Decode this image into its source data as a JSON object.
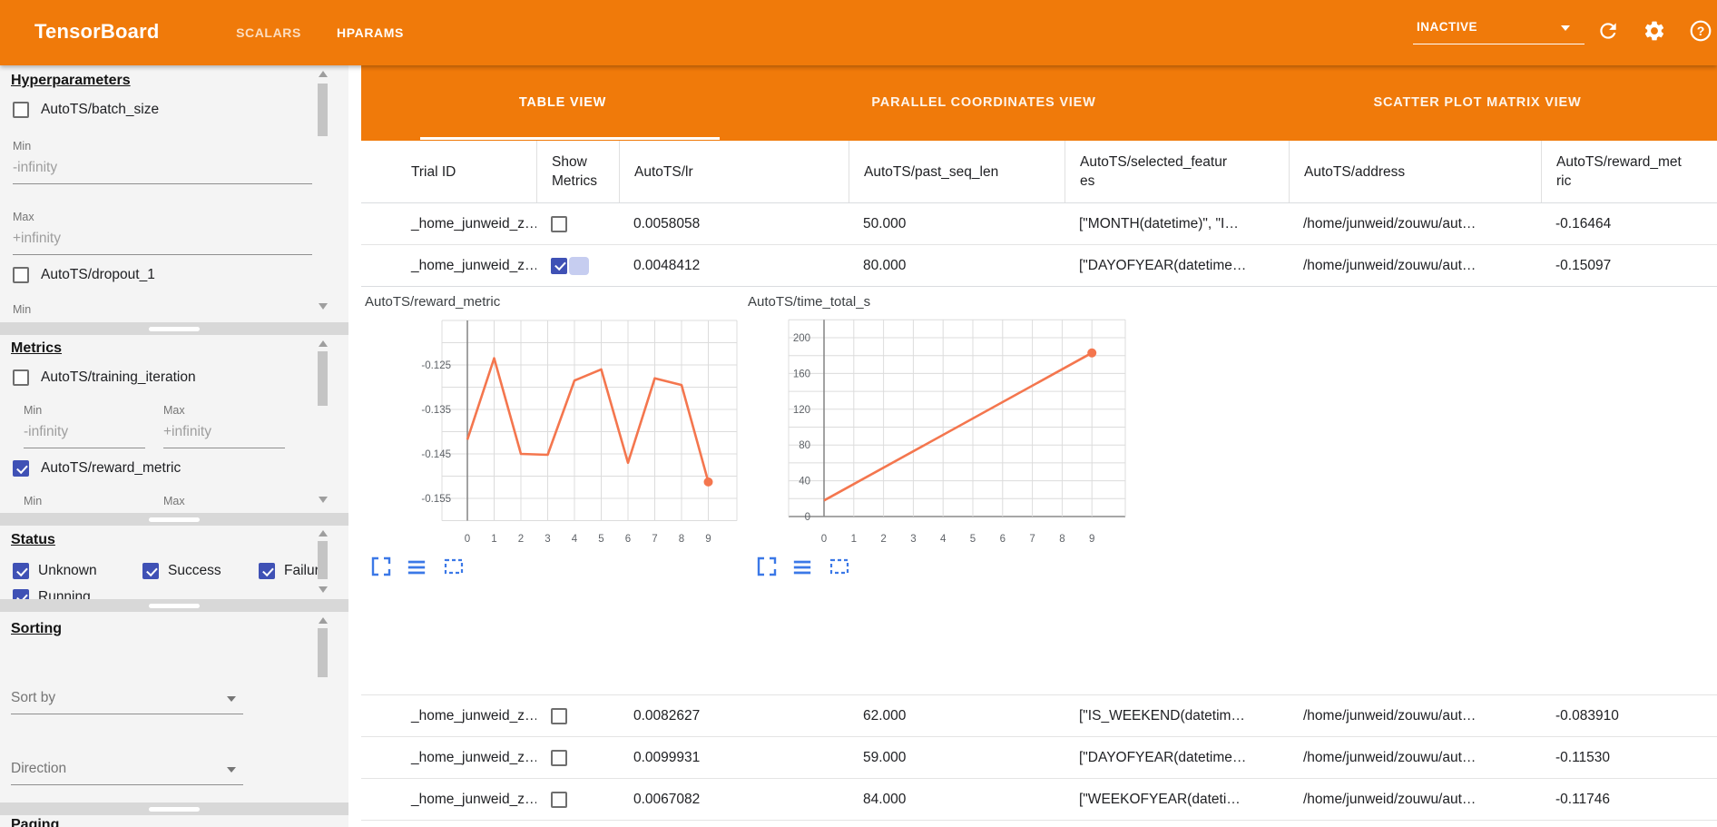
{
  "header": {
    "logo": "TensorBoard",
    "nav": [
      {
        "label": "SCALARS",
        "active": false
      },
      {
        "label": "HPARAMS",
        "active": true
      }
    ],
    "run_status_value": "INACTIVE",
    "icons": [
      "reload-icon",
      "settings-gear-icon",
      "help-icon"
    ]
  },
  "sidebar": {
    "hyperparameters": {
      "title": "Hyperparameters",
      "items": [
        {
          "label": "AutoTS/batch_size",
          "checked": false
        },
        {
          "label": "AutoTS/dropout_1",
          "checked": false
        }
      ],
      "min_label": "Min",
      "max_label": "Max",
      "min_value": "-infinity",
      "max_value": "+infinity"
    },
    "metrics": {
      "title": "Metrics",
      "items": [
        {
          "label": "AutoTS/training_iteration",
          "checked": false
        },
        {
          "label": "AutoTS/reward_metric",
          "checked": true
        }
      ],
      "min_label": "Min",
      "max_label": "Max",
      "min_value": "-infinity",
      "max_value": "+infinity"
    },
    "status": {
      "title": "Status",
      "items": [
        {
          "label": "Unknown",
          "checked": true
        },
        {
          "label": "Success",
          "checked": true
        },
        {
          "label": "Failure",
          "checked": true
        },
        {
          "label": "Running",
          "checked": true
        }
      ]
    },
    "sorting": {
      "title": "Sorting",
      "sort_by_placeholder": "Sort by",
      "direction_placeholder": "Direction"
    },
    "paging": {
      "title": "Paging"
    }
  },
  "main": {
    "view_tabs": [
      {
        "label": "TABLE VIEW",
        "active": true
      },
      {
        "label": "PARALLEL COORDINATES VIEW",
        "active": false
      },
      {
        "label": "SCATTER PLOT MATRIX VIEW",
        "active": false
      }
    ],
    "table": {
      "columns": {
        "trial_id": "Trial ID",
        "show_metrics": "Show Metrics",
        "lr": "AutoTS/lr",
        "past_seq_len": "AutoTS/past_seq_len",
        "selected_features_l1": "AutoTS/selected_featur",
        "selected_features_l2": "es",
        "address": "AutoTS/address",
        "reward_metric_l1": "AutoTS/reward_met",
        "reward_metric_l2": "ric"
      },
      "rows": [
        {
          "trial_id": "_home_junweid_z…",
          "show_metrics": false,
          "lr": "0.0058058",
          "past_seq_len": "50.000",
          "selected_features": "[\"MONTH(datetime)\", \"I…",
          "address": "/home/junweid/zouwu/aut…",
          "reward_metric": "-0.16464"
        },
        {
          "trial_id": "_home_junweid_z…",
          "show_metrics": true,
          "lr": "0.0048412",
          "past_seq_len": "80.000",
          "selected_features": "[\"DAYOFYEAR(datetime…",
          "address": "/home/junweid/zouwu/aut…",
          "reward_metric": "-0.15097"
        },
        {
          "trial_id": "_home_junweid_z…",
          "show_metrics": false,
          "lr": "0.0082627",
          "past_seq_len": "62.000",
          "selected_features": "[\"IS_WEEKEND(datetim…",
          "address": "/home/junweid/zouwu/aut…",
          "reward_metric": "-0.083910"
        },
        {
          "trial_id": "_home_junweid_z…",
          "show_metrics": false,
          "lr": "0.0099931",
          "past_seq_len": "59.000",
          "selected_features": "[\"DAYOFYEAR(datetime…",
          "address": "/home/junweid/zouwu/aut…",
          "reward_metric": "-0.11530"
        },
        {
          "trial_id": "_home_junweid_z…",
          "show_metrics": false,
          "lr": "0.0067082",
          "past_seq_len": "84.000",
          "selected_features": "[\"WEEKOFYEAR(dateti…",
          "address": "/home/junweid/zouwu/aut…",
          "reward_metric": "-0.11746"
        }
      ]
    },
    "chart_icons": [
      "expand-icon",
      "list-lines-icon",
      "dashed-box-icon"
    ]
  },
  "chart_data": [
    {
      "type": "line",
      "title": "AutoTS/reward_metric",
      "x": [
        0,
        1,
        2,
        3,
        4,
        5,
        6,
        7,
        8,
        9
      ],
      "values": [
        -0.1418,
        -0.1235,
        -0.145,
        -0.1452,
        -0.1285,
        -0.126,
        -0.147,
        -0.128,
        -0.1295,
        -0.1513
      ],
      "xticks": [
        0,
        1,
        2,
        3,
        4,
        5,
        6,
        7,
        8,
        9
      ],
      "yticks": [
        -0.125,
        -0.135,
        -0.145,
        -0.155
      ],
      "ylim": [
        -0.1625,
        -0.1115
      ],
      "grid": true,
      "legend": "none",
      "endpoint_marker": true
    },
    {
      "type": "line",
      "title": "AutoTS/time_total_s",
      "x": [
        0,
        9
      ],
      "values": [
        18,
        183
      ],
      "xticks": [
        0,
        1,
        2,
        3,
        4,
        5,
        6,
        7,
        8,
        9
      ],
      "yticks": [
        0,
        40,
        80,
        120,
        160,
        200
      ],
      "ylim": [
        -27,
        228
      ],
      "grid": true,
      "legend": "none",
      "endpoint_marker": true
    }
  ],
  "colors": {
    "accent_orange": "#F07A0A",
    "checkbox_checked": "#3f51b5",
    "chart_line": "#f4764e",
    "chart_icon_blue": "#3b78e7",
    "grid_line": "#dcdcdc",
    "axis_dark": "#8a8a8a"
  }
}
